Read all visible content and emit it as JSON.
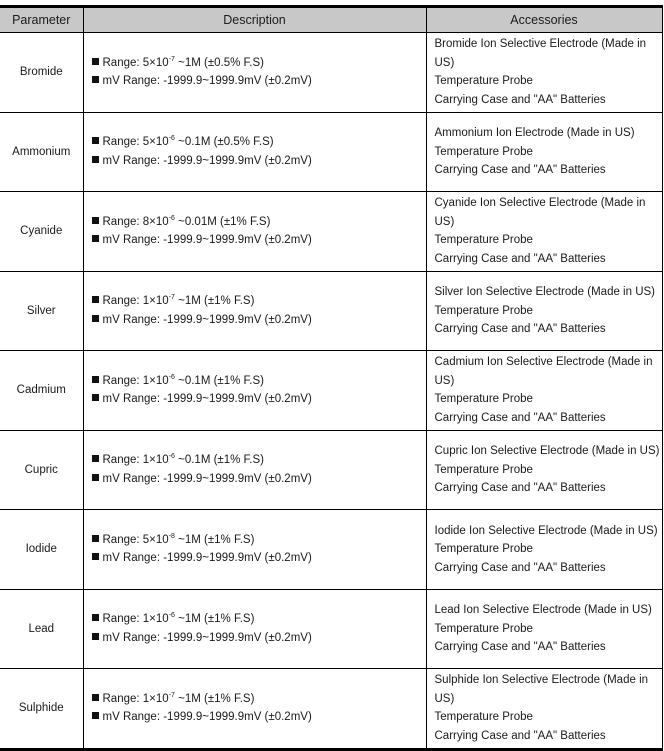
{
  "headers": [
    "Parameter",
    "Description",
    "Accessories"
  ],
  "rows": [
    {
      "parameter": "Bromide",
      "range_pre": "Range: 5×10",
      "range_exp": "-7",
      "range_post": " ~1M (±0.5% F.S)",
      "mv": "mV Range: -1999.9~1999.9mV (±0.2mV)",
      "accessories": [
        "Bromide Ion Selective Electrode (Made in US)",
        "Temperature Probe",
        "Carrying Case and \"AA\" Batteries"
      ]
    },
    {
      "parameter": "Ammonium",
      "range_pre": "Range: 5×10",
      "range_exp": "-6",
      "range_post": " ~0.1M (±0.5% F.S)",
      "mv": "mV Range: -1999.9~1999.9mV (±0.2mV)",
      "accessories": [
        "Ammonium Ion Electrode (Made in US)",
        "Temperature Probe",
        "Carrying Case and \"AA\" Batteries"
      ]
    },
    {
      "parameter": "Cyanide",
      "range_pre": "Range: 8×10",
      "range_exp": "-6",
      "range_post": " ~0.01M (±1% F.S)",
      "mv": "mV Range: -1999.9~1999.9mV (±0.2mV)",
      "accessories": [
        "Cyanide Ion Selective Electrode (Made in US)",
        "Temperature Probe",
        "Carrying Case and \"AA\" Batteries"
      ]
    },
    {
      "parameter": "Silver",
      "range_pre": "Range: 1×10",
      "range_exp": "-7",
      "range_post": " ~1M (±1% F.S)",
      "mv": "mV Range: -1999.9~1999.9mV (±0.2mV)",
      "accessories": [
        "Silver Ion Selective Electrode (Made in US)",
        "Temperature Probe",
        "Carrying Case and \"AA\" Batteries"
      ]
    },
    {
      "parameter": "Cadmium",
      "range_pre": "Range: 1×10",
      "range_exp": "-6",
      "range_post": " ~0.1M (±1% F.S)",
      "mv": "mV Range: -1999.9~1999.9mV (±0.2mV)",
      "accessories": [
        "Cadmium Ion Selective Electrode (Made in US)",
        "Temperature Probe",
        "Carrying Case and \"AA\" Batteries"
      ]
    },
    {
      "parameter": "Cupric",
      "range_pre": "Range: 1×10",
      "range_exp": "-6",
      "range_post": " ~0.1M (±1% F.S)",
      "mv": "mV Range: -1999.9~1999.9mV (±0.2mV)",
      "accessories": [
        "Cupric Ion Selective Electrode (Made in US)",
        "Temperature Probe",
        "Carrying Case and \"AA\" Batteries"
      ]
    },
    {
      "parameter": "Iodide",
      "range_pre": "Range: 5×10",
      "range_exp": "-8",
      "range_post": " ~1M (±1% F.S)",
      "mv": "mV Range: -1999.9~1999.9mV (±0.2mV)",
      "accessories": [
        "Iodide Ion Selective Electrode (Made in US)",
        "Temperature Probe",
        "Carrying Case and \"AA\" Batteries"
      ]
    },
    {
      "parameter": "Lead",
      "range_pre": "Range: 1×10",
      "range_exp": "-6",
      "range_post": " ~1M (±1% F.S)",
      "mv": "mV Range: -1999.9~1999.9mV (±0.2mV)",
      "accessories": [
        "Lead Ion Selective Electrode (Made in US)",
        "Temperature Probe",
        "Carrying Case and \"AA\" Batteries"
      ]
    },
    {
      "parameter": "Sulphide",
      "range_pre": "Range: 1×10",
      "range_exp": "-7",
      "range_post": " ~1M (±1% F.S)",
      "mv": "mV Range: -1999.9~1999.9mV (±0.2mV)",
      "accessories": [
        "Sulphide Ion Selective Electrode (Made in US)",
        "Temperature Probe",
        "Carrying Case and \"AA\" Batteries"
      ]
    }
  ]
}
